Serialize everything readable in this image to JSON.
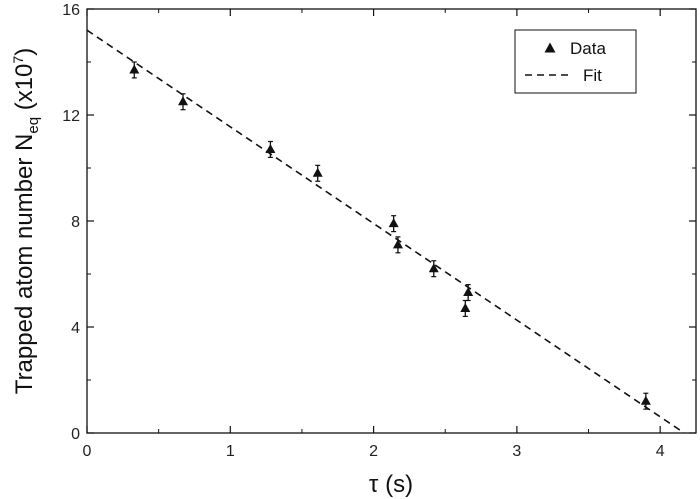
{
  "chart_data": {
    "type": "scatter",
    "xlabel": "τ (s)",
    "ylabel": {
      "main": "Trapped atom number N",
      "subscript": "eq",
      "unit_open": " (x10",
      "unit_exp": "7",
      "unit_close": ")"
    },
    "xlim": [
      0,
      4.25
    ],
    "ylim": [
      0,
      16
    ],
    "x_ticks": [
      0,
      1,
      2,
      3,
      4
    ],
    "y_ticks": [
      0,
      4,
      8,
      12,
      16
    ],
    "grid": false,
    "legend_position": "top-right",
    "series": [
      {
        "name": "Data",
        "marker": "triangle",
        "x": [
          0.33,
          0.67,
          1.28,
          1.61,
          2.14,
          2.17,
          2.42,
          2.64,
          2.66,
          3.9
        ],
        "y": [
          13.7,
          12.5,
          10.7,
          9.8,
          7.9,
          7.1,
          6.2,
          4.7,
          5.3,
          1.2
        ],
        "yerr": [
          0.3,
          0.3,
          0.3,
          0.3,
          0.3,
          0.3,
          0.3,
          0.3,
          0.3,
          0.3
        ]
      },
      {
        "name": "Fit",
        "style": "dashed",
        "x": [
          0,
          4.25
        ],
        "y": [
          15.2,
          -0.3
        ]
      }
    ]
  }
}
